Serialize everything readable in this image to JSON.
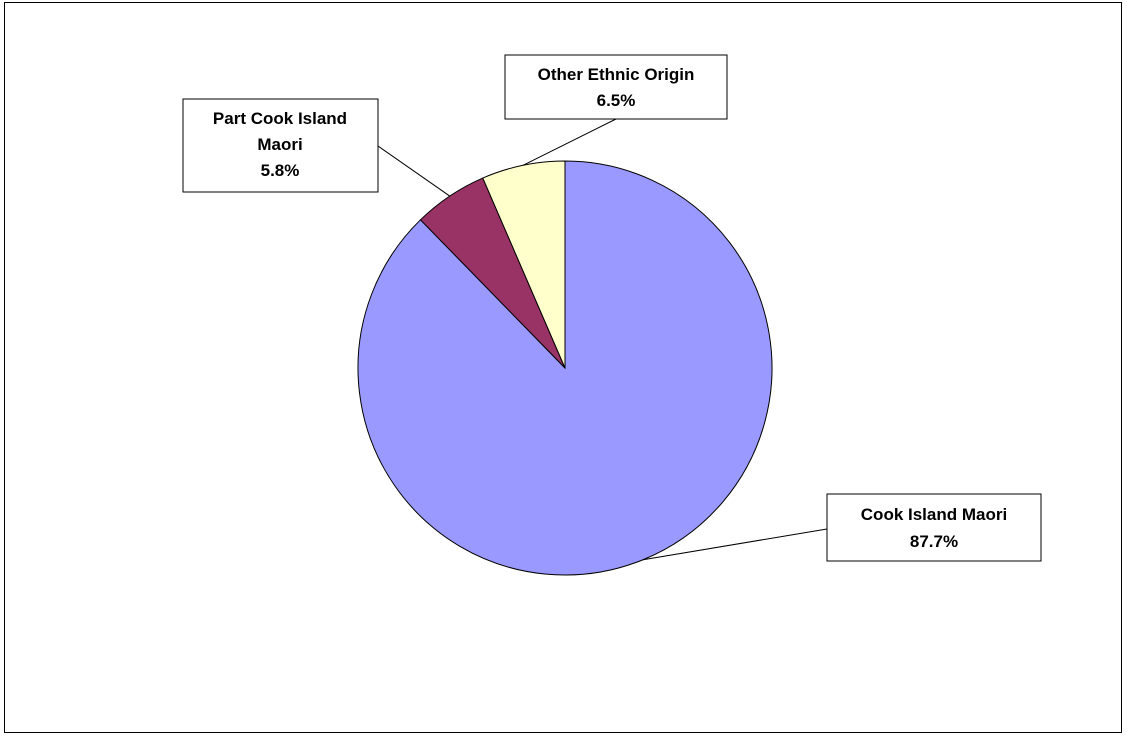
{
  "chart_data": {
    "type": "pie",
    "title": "",
    "slices": [
      {
        "label": "Cook Island Maori",
        "value": 87.7,
        "value_label": "87.7%",
        "color": "#9999FF"
      },
      {
        "label": "Part Cook Island Maori",
        "value": 5.8,
        "value_label": "5.8%",
        "color": "#993366"
      },
      {
        "label": "Other Ethnic Origin",
        "value": 6.5,
        "value_label": "6.5%",
        "color": "#FFFFCC"
      }
    ],
    "legend": "none",
    "data_labels": "outside-with-leader-lines"
  }
}
